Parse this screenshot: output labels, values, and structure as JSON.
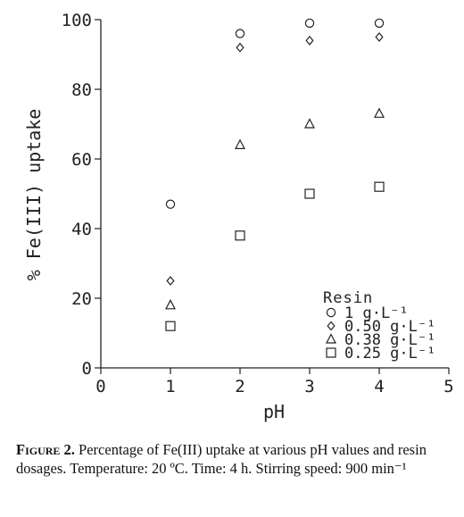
{
  "chart_data": {
    "type": "scatter",
    "xlabel": "pH",
    "ylabel": "% Fe(III) uptake",
    "xlim": [
      0,
      5
    ],
    "ylim": [
      0,
      100
    ],
    "xticks": [
      "0",
      "1",
      "2",
      "3",
      "4",
      "5"
    ],
    "yticks": [
      "0",
      "20",
      "40",
      "60",
      "80",
      "100"
    ],
    "grid": false,
    "legend": {
      "title": "Resin",
      "placement": "bottom-right",
      "entries": [
        "1  g·L⁻¹",
        "0.50  g·L⁻¹",
        "0.38  g·L⁻¹",
        "0.25  g·L⁻¹"
      ]
    },
    "series": [
      {
        "name": "1  g·L⁻¹",
        "marker": "circle",
        "x": [
          1,
          2,
          3,
          4
        ],
        "y": [
          47,
          96,
          99,
          99
        ]
      },
      {
        "name": "0.50  g·L⁻¹",
        "marker": "diamond",
        "x": [
          1,
          2,
          3,
          4
        ],
        "y": [
          25,
          92,
          94,
          95
        ]
      },
      {
        "name": "0.38  g·L⁻¹",
        "marker": "triangle",
        "x": [
          1,
          2,
          3,
          4
        ],
        "y": [
          18,
          64,
          70,
          73
        ]
      },
      {
        "name": "0.25  g·L⁻¹",
        "marker": "square",
        "x": [
          1,
          2,
          3,
          4
        ],
        "y": [
          12,
          38,
          50,
          52
        ]
      }
    ]
  },
  "caption": {
    "label": "Figure 2.",
    "text": " Percentage of Fe(III) uptake at various pH values and resin dosages. Temperature: 20 ºC. Time: 4 h. Stirring speed: 900 min⁻¹"
  }
}
